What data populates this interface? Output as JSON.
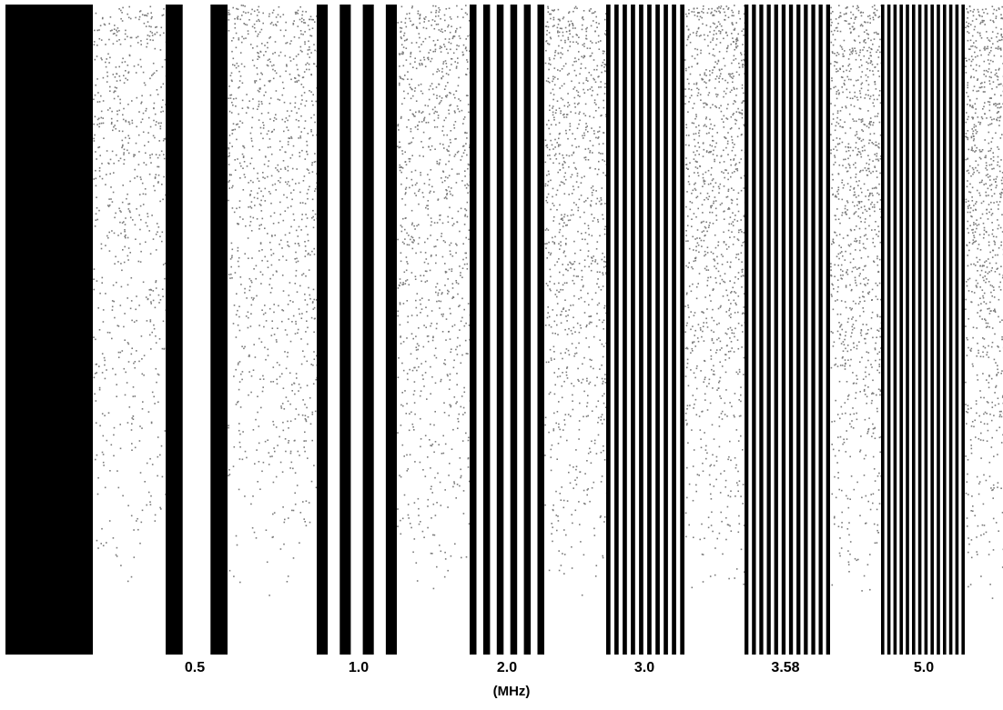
{
  "pattern": {
    "groups": [
      {
        "label": "",
        "bars": 1
      },
      {
        "label": "0.5",
        "bars": 2
      },
      {
        "label": "1.0",
        "bars": 4
      },
      {
        "label": "2.0",
        "bars": 6
      },
      {
        "label": "3.0",
        "bars": 10
      },
      {
        "label": "3.58",
        "bars": 12
      },
      {
        "label": "5.0",
        "bars": 14
      }
    ],
    "unit": "(MHz)",
    "colors": {
      "bar": "#000000",
      "noise": "#7a7a7a",
      "background": "#ffffff"
    }
  }
}
